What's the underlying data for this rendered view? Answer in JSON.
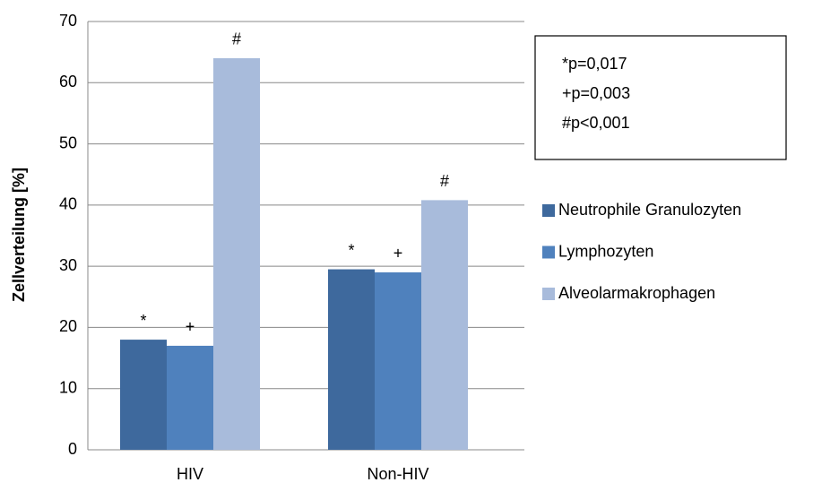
{
  "chart_data": {
    "type": "bar",
    "y_label": "Zellverteilung [%]",
    "categories": [
      "HIV",
      "Non-HIV"
    ],
    "series": [
      {
        "name": "Neutrophile Granulozyten",
        "color": "#3e699d",
        "values": [
          18,
          29.5
        ],
        "marker": "*"
      },
      {
        "name": "Lymphozyten",
        "color": "#4f81bd",
        "values": [
          17,
          29
        ],
        "marker": "+"
      },
      {
        "name": "Alveolarmakrophagen",
        "color": "#a8bbdb",
        "values": [
          64,
          40.8
        ],
        "marker": "#"
      }
    ],
    "ylim": [
      0,
      70
    ],
    "yticks": [
      0,
      10,
      20,
      30,
      40,
      50,
      60,
      70
    ],
    "grid": true,
    "legend": "right",
    "annotation_box": [
      "*p=0,017",
      "+p=0,003",
      "#p<0,001"
    ]
  }
}
